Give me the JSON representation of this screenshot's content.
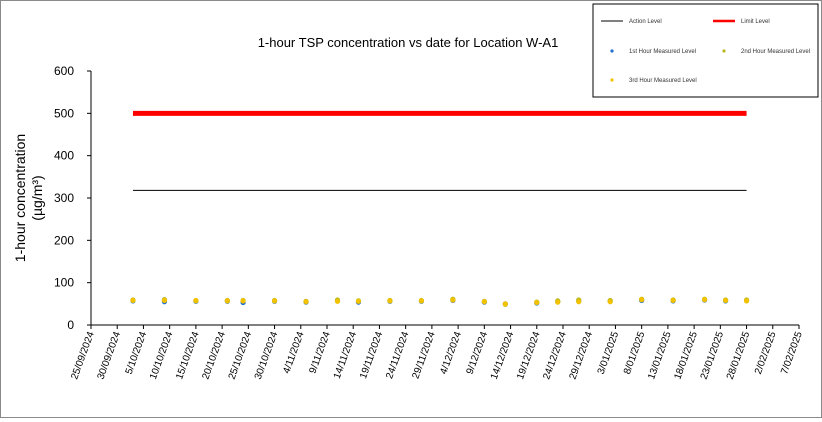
{
  "chart_data": {
    "type": "scatter",
    "title": "1-hour TSP concentration vs date for Location W-A1",
    "ylabel_line1": "1-hour concentration",
    "ylabel_line2": "(µg/m³)",
    "ylim": [
      0,
      600
    ],
    "yticks": [
      "0",
      "100",
      "200",
      "300",
      "400",
      "500",
      "600"
    ],
    "xlim": [
      "2024-09-25",
      "2025-02-07"
    ],
    "xticks": [
      "25/09/2024",
      "30/09/2024",
      "5/10/2024",
      "10/10/2024",
      "15/10/2024",
      "20/10/2024",
      "25/10/2024",
      "30/10/2024",
      "4/11/2024",
      "9/11/2024",
      "14/11/2024",
      "19/11/2024",
      "24/11/2024",
      "29/11/2024",
      "4/12/2024",
      "9/12/2024",
      "14/12/2024",
      "19/12/2024",
      "24/12/2024",
      "29/12/2024",
      "3/01/2025",
      "8/01/2025",
      "13/01/2025",
      "18/01/2025",
      "23/01/2025",
      "28/01/2025",
      "2/02/2025",
      "7/02/2025"
    ],
    "grid": false,
    "legend_position": "top-right",
    "colors": {
      "action": "#000000",
      "limit": "#ff0000",
      "first": "#1f6fd1",
      "second": "#b8b820",
      "third": "#f2c200"
    },
    "series": [
      {
        "name": "Action Level",
        "kind": "hline",
        "y": 318,
        "x_range": [
          "2024-10-03",
          "2025-01-28"
        ]
      },
      {
        "name": "Limit Level",
        "kind": "hline",
        "y": 500,
        "x_range": [
          "2024-10-03",
          "2025-01-28"
        ]
      },
      {
        "name": "1st Hour Measured Level",
        "kind": "points",
        "points": [
          [
            "2024-10-03",
            57
          ],
          [
            "2024-10-09",
            55
          ],
          [
            "2024-10-15",
            56
          ],
          [
            "2024-10-21",
            56
          ],
          [
            "2024-10-24",
            53
          ],
          [
            "2024-10-30",
            56
          ],
          [
            "2024-11-05",
            54
          ],
          [
            "2024-11-11",
            57
          ],
          [
            "2024-11-15",
            54
          ],
          [
            "2024-11-21",
            56
          ],
          [
            "2024-11-27",
            56
          ],
          [
            "2024-12-03",
            58
          ],
          [
            "2024-12-09",
            54
          ],
          [
            "2024-12-13",
            50
          ],
          [
            "2024-12-19",
            52
          ],
          [
            "2024-12-23",
            55
          ],
          [
            "2024-12-27",
            57
          ],
          [
            "2025-01-02",
            56
          ],
          [
            "2025-01-08",
            58
          ],
          [
            "2025-01-14",
            57
          ],
          [
            "2025-01-20",
            59
          ],
          [
            "2025-01-24",
            57
          ],
          [
            "2025-01-28",
            58
          ]
        ]
      },
      {
        "name": "2nd Hour Measured Level",
        "kind": "points",
        "points": [
          [
            "2024-10-03",
            59
          ],
          [
            "2024-10-09",
            60
          ],
          [
            "2024-10-15",
            57
          ],
          [
            "2024-10-21",
            58
          ],
          [
            "2024-10-24",
            58
          ],
          [
            "2024-10-30",
            58
          ],
          [
            "2024-11-05",
            56
          ],
          [
            "2024-11-11",
            59
          ],
          [
            "2024-11-15",
            57
          ],
          [
            "2024-11-21",
            58
          ],
          [
            "2024-11-27",
            58
          ],
          [
            "2024-12-03",
            61
          ],
          [
            "2024-12-09",
            56
          ],
          [
            "2024-12-13",
            49
          ],
          [
            "2024-12-19",
            54
          ],
          [
            "2024-12-23",
            57
          ],
          [
            "2024-12-27",
            59
          ],
          [
            "2025-01-02",
            58
          ],
          [
            "2025-01-08",
            61
          ],
          [
            "2025-01-14",
            59
          ],
          [
            "2025-01-20",
            61
          ],
          [
            "2025-01-24",
            59
          ],
          [
            "2025-01-28",
            59
          ]
        ]
      },
      {
        "name": "3rd Hour Measured Level",
        "kind": "points",
        "points": [
          [
            "2024-10-03",
            58
          ],
          [
            "2024-10-09",
            58
          ],
          [
            "2024-10-15",
            58
          ],
          [
            "2024-10-21",
            57
          ],
          [
            "2024-10-24",
            57
          ],
          [
            "2024-10-30",
            57
          ],
          [
            "2024-11-05",
            55
          ],
          [
            "2024-11-11",
            56
          ],
          [
            "2024-11-15",
            56
          ],
          [
            "2024-11-21",
            57
          ],
          [
            "2024-11-27",
            57
          ],
          [
            "2024-12-03",
            59
          ],
          [
            "2024-12-09",
            55
          ],
          [
            "2024-12-13",
            50
          ],
          [
            "2024-12-19",
            53
          ],
          [
            "2024-12-23",
            54
          ],
          [
            "2024-12-27",
            55
          ],
          [
            "2025-01-02",
            55
          ],
          [
            "2025-01-08",
            60
          ],
          [
            "2025-01-14",
            58
          ],
          [
            "2025-01-20",
            60
          ],
          [
            "2025-01-24",
            58
          ],
          [
            "2025-01-28",
            57
          ]
        ]
      }
    ]
  }
}
